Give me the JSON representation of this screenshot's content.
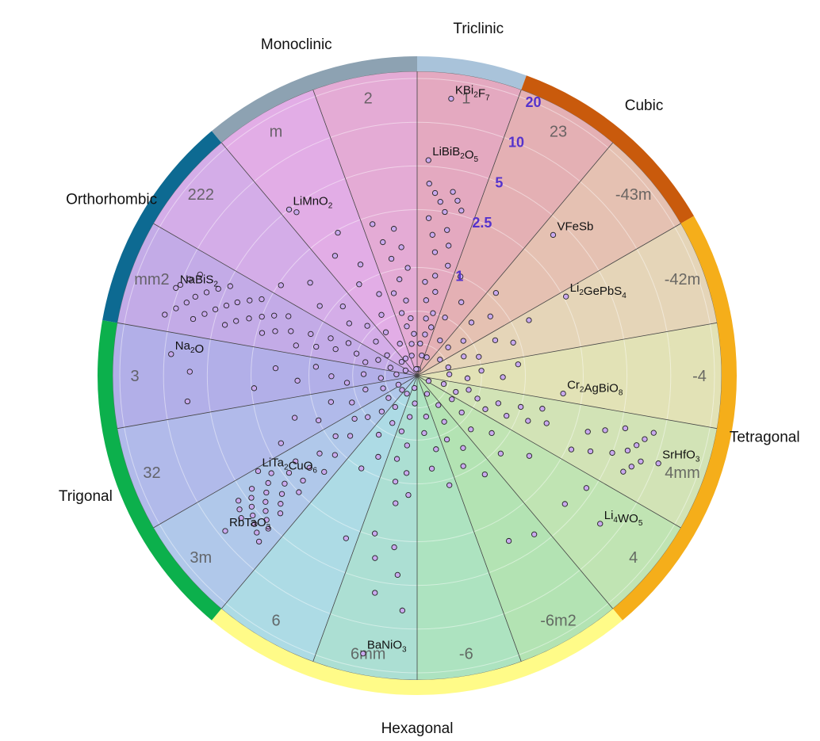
{
  "chart_data": {
    "type": "scatter",
    "subtype": "polar-sector",
    "radial_scale": "log",
    "radial_ticks": [
      1,
      2.5,
      5,
      10,
      20
    ],
    "radial_tick_labels": [
      "1",
      "2.5",
      "5",
      "10",
      "20"
    ],
    "radial_max": 20,
    "grid": true,
    "crystal_systems": [
      {
        "name": "Triclinic",
        "color": "#a9c3da"
      },
      {
        "name": "Cubic",
        "color": "#c95a0c"
      },
      {
        "name": "Tetragonal",
        "color": "#f5ae1a"
      },
      {
        "name": "Hexagonal",
        "color": "#fffb88"
      },
      {
        "name": "Trigonal",
        "color": "#0cb04c"
      },
      {
        "name": "Orthorhombic",
        "color": "#0d6a92"
      },
      {
        "name": "Monoclinic",
        "color": "#8da2b2"
      }
    ],
    "point_groups": [
      {
        "label": "1",
        "system": "Triclinic",
        "color": "#e4a9c0"
      },
      {
        "label": "23",
        "system": "Cubic",
        "color": "#e4b0b4"
      },
      {
        "label": "-43m",
        "system": "Cubic",
        "color": "#e5c1b2"
      },
      {
        "label": "-42m",
        "system": "Tetragonal",
        "color": "#e5d5b8"
      },
      {
        "label": "-4",
        "system": "Tetragonal",
        "color": "#e2e2b6"
      },
      {
        "label": "4mm",
        "system": "Tetragonal",
        "color": "#d2e3b6"
      },
      {
        "label": "4",
        "system": "Tetragonal",
        "color": "#c0e4b3"
      },
      {
        "label": "-6m2",
        "system": "Hexagonal",
        "color": "#b3e3b3"
      },
      {
        "label": "-6",
        "system": "Hexagonal",
        "color": "#ade3c0"
      },
      {
        "label": "6mm",
        "system": "Hexagonal",
        "color": "#acdfd3"
      },
      {
        "label": "6",
        "system": "Hexagonal",
        "color": "#addbe5"
      },
      {
        "label": "3m",
        "system": "Trigonal",
        "color": "#b0c8ea"
      },
      {
        "label": "32",
        "system": "Trigonal",
        "color": "#b1baea"
      },
      {
        "label": "3",
        "system": "Trigonal",
        "color": "#b2afe8"
      },
      {
        "label": "mm2",
        "system": "Orthorhombic",
        "color": "#c3abe7"
      },
      {
        "label": "222",
        "system": "Orthorhombic",
        "color": "#d4ade8"
      },
      {
        "label": "m",
        "system": "Monoclinic",
        "color": "#e2ade6"
      },
      {
        "label": "2",
        "system": "Monoclinic",
        "color": "#e4abd5"
      }
    ],
    "labeled_points": [
      {
        "name": "KBi₂F₇",
        "base": "KBi",
        "sub1": "2",
        "mid": "F",
        "sub2": "7",
        "tail": "",
        "group": "1",
        "value": 15.0,
        "offset": 0.35
      },
      {
        "name": "LiBiB₂O₅",
        "base": "LiBiB",
        "sub1": "2",
        "mid": "O",
        "sub2": "5",
        "tail": "",
        "group": "1",
        "value": 5.5,
        "offset": 0.15
      },
      {
        "name": "VFeSb",
        "base": "VFeSb",
        "sub1": "",
        "mid": "",
        "sub2": "",
        "tail": "",
        "group": "-43m",
        "value": 4.0,
        "offset": 0.2
      },
      {
        "name": "Li₂GePbS₄",
        "base": "Li",
        "sub1": "2",
        "mid": "GePbS",
        "sub2": "4",
        "tail": "",
        "group": "-42m",
        "value": 2.6,
        "offset": 0.1
      },
      {
        "name": "Cr₂AgBiO₈",
        "base": "Cr",
        "sub1": "2",
        "mid": "AgBiO",
        "sub2": "8",
        "tail": "",
        "group": "-4",
        "value": 1.85,
        "offset": 0.85
      },
      {
        "name": "SrHfO₃",
        "base": "SrHfO",
        "sub1": "3",
        "mid": "",
        "sub2": "",
        "tail": "",
        "group": "4mm",
        "value": 10.5,
        "offset": 0.5
      },
      {
        "name": "Li₄WO₅",
        "base": "Li",
        "sub1": "4",
        "mid": "WO",
        "sub2": "5",
        "tail": "",
        "group": "4",
        "value": 7.5,
        "offset": 0.45
      },
      {
        "name": "LiMnO₂",
        "base": "LiMnO",
        "sub1": "2",
        "mid": "",
        "sub2": "",
        "tail": "",
        "group": "m",
        "value": 5.0,
        "offset": 0.12
      },
      {
        "name": "NaBiS₂",
        "base": "NaBiS",
        "sub1": "2",
        "mid": "",
        "sub2": "",
        "tail": "",
        "group": "mm2",
        "value": 10.5,
        "offset": 0.5
      },
      {
        "name": "Na₂O",
        "base": "Na",
        "sub1": "2",
        "mid": "O",
        "sub2": "",
        "tail": "",
        "group": "3",
        "value": 9.0,
        "offset": 0.75
      },
      {
        "name": "LiTa₂CuO₆",
        "base": "LiTa",
        "sub1": "2",
        "mid": "CuO",
        "sub2": "6",
        "tail": "",
        "group": "3m",
        "value": 3.4,
        "offset": 0.95
      },
      {
        "name": "RbTaO₃",
        "base": "RbTaO",
        "sub1": "3",
        "mid": "",
        "sub2": "",
        "tail": "",
        "group": "3m",
        "value": 9.0,
        "offset": 0.55
      },
      {
        "name": "BaNiO₃",
        "base": "BaNiO",
        "sub1": "3",
        "mid": "",
        "sub2": "",
        "tail": "",
        "group": "6mm",
        "value": 16.0,
        "offset": 0.55
      }
    ],
    "unlabeled_points": [
      {
        "group": "1",
        "values": [
          3.8,
          3.5,
          3.3,
          3.1,
          2.9,
          2.7,
          2.5,
          2.2,
          1.9,
          1.7,
          1.5,
          1.3,
          1.1,
          0.9,
          0.8,
          0.7,
          0.6,
          0.5,
          0.45,
          0.4,
          0.35,
          0.3,
          0.25,
          0.2
        ]
      },
      {
        "group": "2",
        "values": [
          2.2,
          1.9,
          1.6,
          1.4,
          1.2,
          1.0,
          0.85,
          0.7,
          0.6,
          0.5,
          0.45,
          0.4,
          0.35,
          0.3,
          0.25,
          0.2
        ]
      },
      {
        "group": "23",
        "values": [
          1.0,
          0.7,
          0.5,
          0.35,
          0.25
        ]
      },
      {
        "group": "-43m",
        "values": [
          1.1,
          0.8,
          0.6,
          0.45,
          0.35,
          0.28
        ]
      },
      {
        "group": "-42m",
        "values": [
          1.3,
          0.9,
          0.7,
          0.5,
          0.4,
          0.3
        ]
      },
      {
        "group": "-4",
        "values": [
          0.9,
          0.7,
          0.5,
          0.4,
          0.3
        ]
      },
      {
        "group": "4mm",
        "values": [
          8.5,
          8.0,
          7.6,
          7.2,
          6.9,
          6.6,
          6.2,
          5.4,
          5.0,
          4.0,
          3.6,
          3.1,
          2.7,
          1.6,
          1.4,
          1.2,
          1.0,
          0.85,
          0.7,
          0.6,
          0.5,
          0.42,
          0.35,
          0.28,
          0.22
        ]
      },
      {
        "group": "4",
        "values": [
          4.5,
          4.0,
          1.6,
          1.1,
          0.8,
          0.6,
          0.45,
          0.35
        ]
      },
      {
        "group": "-6m2",
        "values": [
          4.1,
          3.6,
          1.2,
          0.9,
          0.7,
          0.55,
          0.42,
          0.32,
          0.25
        ]
      },
      {
        "group": "-6",
        "values": [
          1.1,
          0.8,
          0.6,
          0.45,
          0.35
        ]
      },
      {
        "group": "6mm",
        "values": [
          7.5,
          6.0,
          4.3,
          3.5,
          2.8,
          2.4,
          1.4,
          1.2,
          1.0,
          0.85,
          0.7,
          0.55,
          0.45,
          0.35,
          0.28,
          0.22
        ]
      },
      {
        "group": "6",
        "values": [
          3.0,
          1.0,
          0.75,
          0.55,
          0.42,
          0.33,
          0.25
        ]
      },
      {
        "group": "3m",
        "values": [
          6.8,
          6.5,
          6.3,
          6.1,
          5.9,
          5.7,
          5.5,
          5.3,
          5.1,
          4.9,
          4.7,
          4.5,
          4.3,
          4.1,
          3.9,
          3.7,
          3.5,
          3.3,
          3.1,
          2.9,
          2.7,
          2.5,
          2.3,
          2.1,
          1.9,
          1.7,
          1.5,
          1.3,
          1.1,
          0.9,
          0.75,
          0.6,
          0.5,
          0.4,
          0.32,
          0.25
        ]
      },
      {
        "group": "32",
        "values": [
          2.0,
          1.4,
          1.0,
          0.75,
          0.55,
          0.42,
          0.32,
          0.25
        ]
      },
      {
        "group": "3",
        "values": [
          7.0,
          6.6,
          2.4,
          1.7,
          1.2,
          0.9,
          0.7,
          0.55,
          0.42,
          0.32,
          0.25
        ]
      },
      {
        "group": "mm2",
        "values": [
          11.0,
          10.0,
          9.5,
          9.0,
          8.3,
          8.0,
          7.5,
          7.0,
          6.5,
          6.0,
          5.6,
          5.2,
          4.8,
          4.5,
          4.2,
          3.9,
          3.6,
          3.3,
          3.0,
          2.8,
          2.5,
          2.3,
          2.1,
          1.9,
          1.7,
          1.5,
          1.3,
          1.1,
          0.95,
          0.8,
          0.7,
          0.6,
          0.5,
          0.42,
          0.35,
          0.28,
          0.22
        ]
      },
      {
        "group": "222",
        "values": [
          2.4,
          1.7,
          1.2,
          0.9,
          0.7,
          0.55,
          0.42,
          0.32,
          0.25
        ]
      },
      {
        "group": "m",
        "values": [
          4.5,
          2.4,
          1.8,
          1.3,
          1.0,
          0.75,
          0.55,
          0.42,
          0.32,
          0.25
        ]
      }
    ]
  }
}
